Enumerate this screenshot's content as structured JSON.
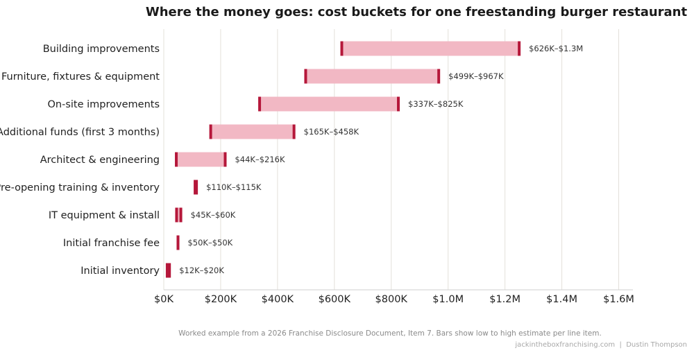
{
  "chart_data": {
    "type": "range-bar",
    "title": "Where the money goes: cost buckets for one freestanding burger restaurant",
    "caption": "Worked example from a 2026 Franchise Disclosure Document, Item 7. Bars show low to high estimate per line item.",
    "credit": "jackintheboxfranchising.com  |  Dustin Thompson",
    "xlim": [
      0,
      1650000
    ],
    "xticks": [
      {
        "value": 0,
        "label": "$0K"
      },
      {
        "value": 200000,
        "label": "$200K"
      },
      {
        "value": 400000,
        "label": "$400K"
      },
      {
        "value": 600000,
        "label": "$600K"
      },
      {
        "value": 800000,
        "label": "$800K"
      },
      {
        "value": 1000000,
        "label": "$1.0M"
      },
      {
        "value": 1200000,
        "label": "$1.2M"
      },
      {
        "value": 1400000,
        "label": "$1.4M"
      },
      {
        "value": 1600000,
        "label": "$1.6M"
      }
    ],
    "grid": true,
    "colors": {
      "range_fill": "#f2b8c4",
      "endpoint": "#b5173a",
      "grid": "#e3e0da"
    },
    "items": [
      {
        "category": "Building improvements",
        "low": 626000,
        "high": 1250000,
        "label": "$626K–$1.3M"
      },
      {
        "category": "Furniture, fixtures & equipment",
        "low": 499000,
        "high": 967000,
        "label": "$499K–$967K"
      },
      {
        "category": "On-site improvements",
        "low": 337000,
        "high": 825000,
        "label": "$337K–$825K"
      },
      {
        "category": "Additional funds (first 3 months)",
        "low": 165000,
        "high": 458000,
        "label": "$165K–$458K"
      },
      {
        "category": "Architect & engineering",
        "low": 44000,
        "high": 216000,
        "label": "$44K–$216K"
      },
      {
        "category": "Pre-opening training & inventory",
        "low": 110000,
        "high": 115000,
        "label": "$110K–$115K"
      },
      {
        "category": "IT equipment & install",
        "low": 45000,
        "high": 60000,
        "label": "$45K–$60K"
      },
      {
        "category": "Initial franchise fee",
        "low": 50000,
        "high": 50000,
        "label": "$50K–$50K"
      },
      {
        "category": "Initial inventory",
        "low": 12000,
        "high": 20000,
        "label": "$12K–$20K"
      }
    ]
  }
}
